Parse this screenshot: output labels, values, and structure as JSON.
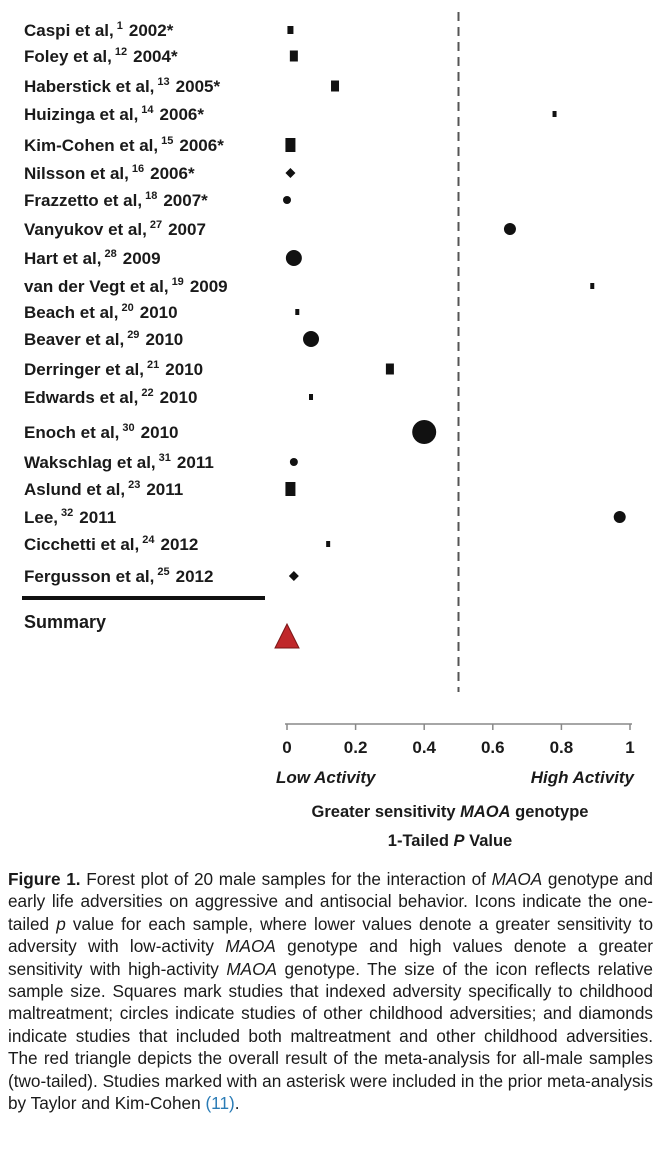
{
  "chart_data": {
    "type": "scatter",
    "studies": [
      {
        "author": "Caspi et al,",
        "ref": "1",
        "year": "2002*",
        "p": 0.01,
        "shape": "square",
        "size": 2
      },
      {
        "author": "Foley et al,",
        "ref": "12",
        "year": "2004*",
        "p": 0.02,
        "shape": "square",
        "size": 3
      },
      {
        "author": "Haberstick et al,",
        "ref": "13",
        "year": "2005*",
        "p": 0.14,
        "shape": "square",
        "size": 3
      },
      {
        "author": "Huizinga et al,",
        "ref": "14",
        "year": "2006*",
        "p": 0.78,
        "shape": "square",
        "size": 1
      },
      {
        "author": "Kim-Cohen et al,",
        "ref": "15",
        "year": "2006*",
        "p": 0.01,
        "shape": "square",
        "size": 4
      },
      {
        "author": "Nilsson et al,",
        "ref": "16",
        "year": "2006*",
        "p": 0.01,
        "shape": "diamond",
        "size": 1
      },
      {
        "author": "Frazzetto et al,",
        "ref": "18",
        "year": "2007*",
        "p": 0.0,
        "shape": "circle",
        "size": 1
      },
      {
        "author": "Vanyukov et al,",
        "ref": "27",
        "year": "2007",
        "p": 0.65,
        "shape": "circle",
        "size": 2
      },
      {
        "author": "Hart et al,",
        "ref": "28",
        "year": "2009",
        "p": 0.02,
        "shape": "circle",
        "size": 3
      },
      {
        "author": "van der Vegt et al,",
        "ref": "19",
        "year": "2009",
        "p": 0.89,
        "shape": "square",
        "size": 1
      },
      {
        "author": "Beach et al,",
        "ref": "20",
        "year": "2010",
        "p": 0.03,
        "shape": "square",
        "size": 1
      },
      {
        "author": "Beaver et al,",
        "ref": "29",
        "year": "2010",
        "p": 0.07,
        "shape": "circle",
        "size": 3
      },
      {
        "author": "Derringer et al,",
        "ref": "21",
        "year": "2010",
        "p": 0.3,
        "shape": "square",
        "size": 3
      },
      {
        "author": "Edwards et al,",
        "ref": "22",
        "year": "2010",
        "p": 0.07,
        "shape": "square",
        "size": 1
      },
      {
        "author": "Enoch et al,",
        "ref": "30",
        "year": "2010",
        "p": 0.4,
        "shape": "circle",
        "size": 5
      },
      {
        "author": "Wakschlag et al,",
        "ref": "31",
        "year": "2011",
        "p": 0.02,
        "shape": "circle",
        "size": 1
      },
      {
        "author": "Aslund et al,",
        "ref": "23",
        "year": "2011",
        "p": 0.01,
        "shape": "square",
        "size": 4
      },
      {
        "author": "Lee,",
        "ref": "32",
        "year": "2011",
        "p": 0.97,
        "shape": "circle",
        "size": 2
      },
      {
        "author": "Cicchetti et al,",
        "ref": "24",
        "year": "2012",
        "p": 0.12,
        "shape": "square",
        "size": 1
      },
      {
        "author": "Fergusson et al,",
        "ref": "25",
        "year": "2012",
        "p": 0.02,
        "shape": "diamond",
        "size": 1
      }
    ],
    "summary": {
      "label": "Summary",
      "p": 0.0,
      "shape": "triangle",
      "color": "#c0282b"
    },
    "reference_line": 0.5,
    "xlim": [
      0,
      1
    ],
    "xticks": [
      0,
      0.2,
      0.4,
      0.6,
      0.8,
      1
    ],
    "xtick_labels": [
      "0",
      "0.2",
      "0.4",
      "0.6",
      "0.8",
      "1"
    ],
    "low_label": "Low Activity",
    "high_label": "High Activity",
    "xlabel_line1_pre": "Greater sensitivity ",
    "xlabel_line1_gene": "MAOA",
    "xlabel_line1_post": " genotype",
    "xlabel_line2_pre": "1-Tailed ",
    "xlabel_line2_p": "P",
    "xlabel_line2_post": " Value"
  },
  "caption": {
    "label": "Figure 1.",
    "segments": [
      {
        "text": " Forest plot of 20 male samples for the interaction of ",
        "style": "normal"
      },
      {
        "text": "MAOA",
        "style": "italic"
      },
      {
        "text": " genotype and early life adversities on aggressive and antisocial behavior. Icons indicate the one-tailed ",
        "style": "normal"
      },
      {
        "text": "p",
        "style": "italic"
      },
      {
        "text": " value for each sample, where lower values denote a greater sensitivity to adversity with low-activity ",
        "style": "normal"
      },
      {
        "text": "MAOA",
        "style": "italic"
      },
      {
        "text": " genotype and high values denote a greater sensitivity with high-activity ",
        "style": "normal"
      },
      {
        "text": "MAOA",
        "style": "italic"
      },
      {
        "text": " genotype. The size of the icon reflects relative sample size. Squares mark studies that indexed adversity specifically to childhood maltreatment; circles indicate studies of other childhood adversities; and diamonds indicate studies that included both maltreatment and other childhood adversities. The red triangle depicts the overall result of the meta-analysis for all-male samples (two-tailed). Studies marked with an asterisk were included in the prior meta-analysis by Taylor and Kim-Cohen ",
        "style": "normal"
      },
      {
        "text": "(11)",
        "style": "cite"
      },
      {
        "text": ".",
        "style": "normal"
      }
    ]
  }
}
